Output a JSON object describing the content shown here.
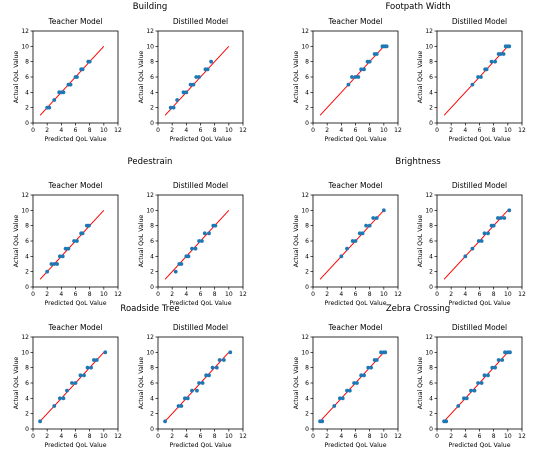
{
  "chart_data": [
    {
      "group": "Building",
      "type": "scatter",
      "panels": [
        {
          "title": "Teacher Model",
          "xlabel": "Predicted QoL Value",
          "ylabel": "Actual QoL Value",
          "xlim": [
            0,
            12
          ],
          "ylim": [
            0,
            12
          ],
          "xticks": [
            0,
            2,
            4,
            6,
            8,
            10,
            12
          ],
          "yticks": [
            0,
            2,
            4,
            6,
            8,
            10,
            12
          ],
          "reference_line": [
            1,
            10
          ],
          "points": [
            [
              2.0,
              2.0
            ],
            [
              2.3,
              2.0
            ],
            [
              3.0,
              3.0
            ],
            [
              3.7,
              4.0
            ],
            [
              4.0,
              4.0
            ],
            [
              4.3,
              4.0
            ],
            [
              5.0,
              5.0
            ],
            [
              5.3,
              5.0
            ],
            [
              6.0,
              6.0
            ],
            [
              6.2,
              6.0
            ],
            [
              6.8,
              7.0
            ],
            [
              7.0,
              7.0
            ],
            [
              7.8,
              8.0
            ],
            [
              8.0,
              8.0
            ]
          ]
        },
        {
          "title": "Distilled Model",
          "xlabel": "Predicted QoL Value",
          "ylabel": "Actual QoL Value",
          "xlim": [
            0,
            12
          ],
          "ylim": [
            0,
            12
          ],
          "xticks": [
            0,
            2,
            4,
            6,
            8,
            10,
            12
          ],
          "yticks": [
            0,
            2,
            4,
            6,
            8,
            10,
            12
          ],
          "reference_line": [
            1,
            10
          ],
          "points": [
            [
              1.8,
              2.0
            ],
            [
              2.2,
              2.0
            ],
            [
              2.7,
              3.0
            ],
            [
              3.6,
              4.0
            ],
            [
              4.0,
              4.0
            ],
            [
              4.6,
              5.0
            ],
            [
              5.0,
              5.0
            ],
            [
              5.4,
              6.0
            ],
            [
              5.8,
              6.0
            ],
            [
              6.7,
              7.0
            ],
            [
              7.0,
              7.0
            ],
            [
              7.5,
              8.0
            ]
          ]
        }
      ]
    },
    {
      "group": "Footpath Width",
      "type": "scatter",
      "panels": [
        {
          "title": "Teacher Model",
          "xlabel": "Predicted QoL Value",
          "ylabel": "Actual QoL Value",
          "xlim": [
            0,
            12
          ],
          "ylim": [
            0,
            12
          ],
          "xticks": [
            0,
            2,
            4,
            6,
            8,
            10,
            12
          ],
          "yticks": [
            0,
            2,
            4,
            6,
            8,
            10,
            12
          ],
          "reference_line": [
            1,
            10
          ],
          "points": [
            [
              5.0,
              5.0
            ],
            [
              5.5,
              6.0
            ],
            [
              6.0,
              6.0
            ],
            [
              6.4,
              6.0
            ],
            [
              6.8,
              7.0
            ],
            [
              7.2,
              7.0
            ],
            [
              7.7,
              8.0
            ],
            [
              8.0,
              8.0
            ],
            [
              8.7,
              9.0
            ],
            [
              9.0,
              9.0
            ],
            [
              9.8,
              10.0
            ],
            [
              10.0,
              10.0
            ],
            [
              10.2,
              10.0
            ],
            [
              10.4,
              10.0
            ]
          ]
        },
        {
          "title": "Distilled Model",
          "xlabel": "Predicted QoL Value",
          "ylabel": "Actual QoL Value",
          "xlim": [
            0,
            12
          ],
          "ylim": [
            0,
            12
          ],
          "xticks": [
            0,
            2,
            4,
            6,
            8,
            10,
            12
          ],
          "yticks": [
            0,
            2,
            4,
            6,
            8,
            10,
            12
          ],
          "reference_line": [
            1,
            10
          ],
          "points": [
            [
              5.0,
              5.0
            ],
            [
              5.8,
              6.0
            ],
            [
              6.2,
              6.0
            ],
            [
              6.8,
              7.0
            ],
            [
              7.0,
              7.0
            ],
            [
              7.7,
              8.0
            ],
            [
              8.2,
              8.0
            ],
            [
              8.7,
              9.0
            ],
            [
              9.0,
              9.0
            ],
            [
              9.4,
              9.0
            ],
            [
              9.7,
              10.0
            ],
            [
              10.0,
              10.0
            ],
            [
              10.2,
              10.0
            ]
          ]
        }
      ]
    },
    {
      "group": "Pedestrain",
      "type": "scatter",
      "panels": [
        {
          "title": "Teacher Model",
          "xlabel": "Predicted QoL Value",
          "ylabel": "Actual QoL Value",
          "xlim": [
            0,
            12
          ],
          "ylim": [
            0,
            12
          ],
          "xticks": [
            0,
            2,
            4,
            6,
            8,
            10,
            12
          ],
          "yticks": [
            0,
            2,
            4,
            6,
            8,
            10,
            12
          ],
          "reference_line": [
            1,
            10
          ],
          "points": [
            [
              2.0,
              2.0
            ],
            [
              2.6,
              3.0
            ],
            [
              3.0,
              3.0
            ],
            [
              3.4,
              3.0
            ],
            [
              3.8,
              4.0
            ],
            [
              4.2,
              4.0
            ],
            [
              4.6,
              5.0
            ],
            [
              5.0,
              5.0
            ],
            [
              5.8,
              6.0
            ],
            [
              6.2,
              6.0
            ],
            [
              6.8,
              7.0
            ],
            [
              7.0,
              7.0
            ],
            [
              7.6,
              8.0
            ],
            [
              7.9,
              8.0
            ]
          ]
        },
        {
          "title": "Distilled Model",
          "xlabel": "Predicted QoL Value",
          "ylabel": "Actual QoL Value",
          "xlim": [
            0,
            12
          ],
          "ylim": [
            0,
            12
          ],
          "xticks": [
            0,
            2,
            4,
            6,
            8,
            10,
            12
          ],
          "yticks": [
            0,
            2,
            4,
            6,
            8,
            10,
            12
          ],
          "reference_line": [
            1,
            10
          ],
          "points": [
            [
              2.5,
              2.0
            ],
            [
              3.0,
              3.0
            ],
            [
              3.3,
              3.0
            ],
            [
              4.0,
              4.0
            ],
            [
              4.3,
              4.0
            ],
            [
              4.8,
              5.0
            ],
            [
              5.3,
              5.0
            ],
            [
              5.8,
              6.0
            ],
            [
              6.2,
              6.0
            ],
            [
              6.6,
              7.0
            ],
            [
              7.2,
              7.0
            ],
            [
              7.8,
              8.0
            ],
            [
              8.1,
              8.0
            ]
          ]
        }
      ]
    },
    {
      "group": "Brightness",
      "type": "scatter",
      "panels": [
        {
          "title": "Teacher Model",
          "xlabel": "Predicted QoL Value",
          "ylabel": "Actual QoL Value",
          "xlim": [
            0,
            12
          ],
          "ylim": [
            0,
            12
          ],
          "xticks": [
            0,
            2,
            4,
            6,
            8,
            10,
            12
          ],
          "yticks": [
            0,
            2,
            4,
            6,
            8,
            10,
            12
          ],
          "reference_line": [
            1,
            10
          ],
          "points": [
            [
              4.0,
              4.0
            ],
            [
              4.8,
              5.0
            ],
            [
              5.6,
              6.0
            ],
            [
              6.0,
              6.0
            ],
            [
              6.6,
              7.0
            ],
            [
              7.0,
              7.0
            ],
            [
              7.5,
              8.0
            ],
            [
              8.0,
              8.0
            ],
            [
              8.5,
              9.0
            ],
            [
              9.0,
              9.0
            ],
            [
              10.0,
              10.0
            ]
          ]
        },
        {
          "title": "Distilled Model",
          "xlabel": "Predicted QoL Value",
          "ylabel": "Actual QoL Value",
          "xlim": [
            0,
            12
          ],
          "ylim": [
            0,
            12
          ],
          "xticks": [
            0,
            2,
            4,
            6,
            8,
            10,
            12
          ],
          "yticks": [
            0,
            2,
            4,
            6,
            8,
            10,
            12
          ],
          "reference_line": [
            1,
            10
          ],
          "points": [
            [
              4.0,
              4.0
            ],
            [
              5.0,
              5.0
            ],
            [
              5.9,
              6.0
            ],
            [
              6.3,
              6.0
            ],
            [
              6.7,
              7.0
            ],
            [
              7.2,
              7.0
            ],
            [
              7.7,
              8.0
            ],
            [
              8.0,
              8.0
            ],
            [
              8.6,
              9.0
            ],
            [
              9.0,
              9.0
            ],
            [
              9.5,
              9.0
            ],
            [
              10.2,
              10.0
            ]
          ]
        }
      ]
    },
    {
      "group": "Roadside Tree",
      "type": "scatter",
      "panels": [
        {
          "title": "Teacher Model",
          "xlabel": "Predicted QoL Value",
          "ylabel": "Actual QoL Value",
          "xlim": [
            0,
            12
          ],
          "ylim": [
            0,
            12
          ],
          "xticks": [
            0,
            2,
            4,
            6,
            8,
            10,
            12
          ],
          "yticks": [
            0,
            2,
            4,
            6,
            8,
            10,
            12
          ],
          "reference_line": [
            1,
            10
          ],
          "points": [
            [
              1.0,
              1.0
            ],
            [
              3.0,
              3.0
            ],
            [
              3.8,
              4.0
            ],
            [
              4.3,
              4.0
            ],
            [
              4.8,
              5.0
            ],
            [
              5.5,
              6.0
            ],
            [
              6.0,
              6.0
            ],
            [
              6.7,
              7.0
            ],
            [
              7.2,
              7.0
            ],
            [
              7.7,
              8.0
            ],
            [
              8.2,
              8.0
            ],
            [
              8.6,
              9.0
            ],
            [
              9.0,
              9.0
            ],
            [
              10.2,
              10.0
            ]
          ]
        },
        {
          "title": "Distilled Model",
          "xlabel": "Predicted QoL Value",
          "ylabel": "Actual QoL Value",
          "xlim": [
            0,
            12
          ],
          "ylim": [
            0,
            12
          ],
          "xticks": [
            0,
            2,
            4,
            6,
            8,
            10,
            12
          ],
          "yticks": [
            0,
            2,
            4,
            6,
            8,
            10,
            12
          ],
          "reference_line": [
            1,
            10
          ],
          "points": [
            [
              1.0,
              1.0
            ],
            [
              2.9,
              3.0
            ],
            [
              3.3,
              3.0
            ],
            [
              3.8,
              4.0
            ],
            [
              4.2,
              4.0
            ],
            [
              4.8,
              5.0
            ],
            [
              5.5,
              5.0
            ],
            [
              5.8,
              6.0
            ],
            [
              6.3,
              6.0
            ],
            [
              6.8,
              7.0
            ],
            [
              7.2,
              7.0
            ],
            [
              7.7,
              8.0
            ],
            [
              8.3,
              8.0
            ],
            [
              8.7,
              9.0
            ],
            [
              9.3,
              9.0
            ],
            [
              10.2,
              10.0
            ]
          ]
        }
      ]
    },
    {
      "group": "Zebra Crossing",
      "type": "scatter",
      "panels": [
        {
          "title": "Teacher Model",
          "xlabel": "Predicted QoL Value",
          "ylabel": "Actual QoL Value",
          "xlim": [
            0,
            12
          ],
          "ylim": [
            0,
            12
          ],
          "xticks": [
            0,
            2,
            4,
            6,
            8,
            10,
            12
          ],
          "yticks": [
            0,
            2,
            4,
            6,
            8,
            10,
            12
          ],
          "reference_line": [
            1,
            10
          ],
          "points": [
            [
              1.0,
              1.0
            ],
            [
              1.3,
              1.0
            ],
            [
              3.0,
              3.0
            ],
            [
              3.8,
              4.0
            ],
            [
              4.2,
              4.0
            ],
            [
              4.8,
              5.0
            ],
            [
              5.2,
              5.0
            ],
            [
              5.8,
              6.0
            ],
            [
              6.2,
              6.0
            ],
            [
              6.8,
              7.0
            ],
            [
              7.2,
              7.0
            ],
            [
              7.8,
              8.0
            ],
            [
              8.2,
              8.0
            ],
            [
              8.7,
              9.0
            ],
            [
              9.0,
              9.0
            ],
            [
              9.6,
              10.0
            ],
            [
              10.0,
              10.0
            ],
            [
              10.2,
              10.0
            ]
          ]
        },
        {
          "title": "Distilled Model",
          "xlabel": "Predicted QoL Value",
          "ylabel": "Actual QoL Value",
          "xlim": [
            0,
            12
          ],
          "ylim": [
            0,
            12
          ],
          "xticks": [
            0,
            2,
            4,
            6,
            8,
            10,
            12
          ],
          "yticks": [
            0,
            2,
            4,
            6,
            8,
            10,
            12
          ],
          "reference_line": [
            1,
            10
          ],
          "points": [
            [
              1.0,
              1.0
            ],
            [
              1.3,
              1.0
            ],
            [
              3.0,
              3.0
            ],
            [
              3.8,
              4.0
            ],
            [
              4.2,
              4.0
            ],
            [
              4.8,
              5.0
            ],
            [
              5.3,
              5.0
            ],
            [
              5.8,
              6.0
            ],
            [
              6.3,
              6.0
            ],
            [
              6.7,
              7.0
            ],
            [
              7.2,
              7.0
            ],
            [
              7.8,
              8.0
            ],
            [
              8.2,
              8.0
            ],
            [
              8.7,
              9.0
            ],
            [
              9.2,
              9.0
            ],
            [
              9.6,
              10.0
            ],
            [
              10.0,
              10.0
            ],
            [
              10.3,
              10.0
            ]
          ]
        }
      ]
    }
  ],
  "colors": {
    "points": "#1f77b4",
    "reference_line": "#ff0000",
    "axes": "#000000"
  }
}
